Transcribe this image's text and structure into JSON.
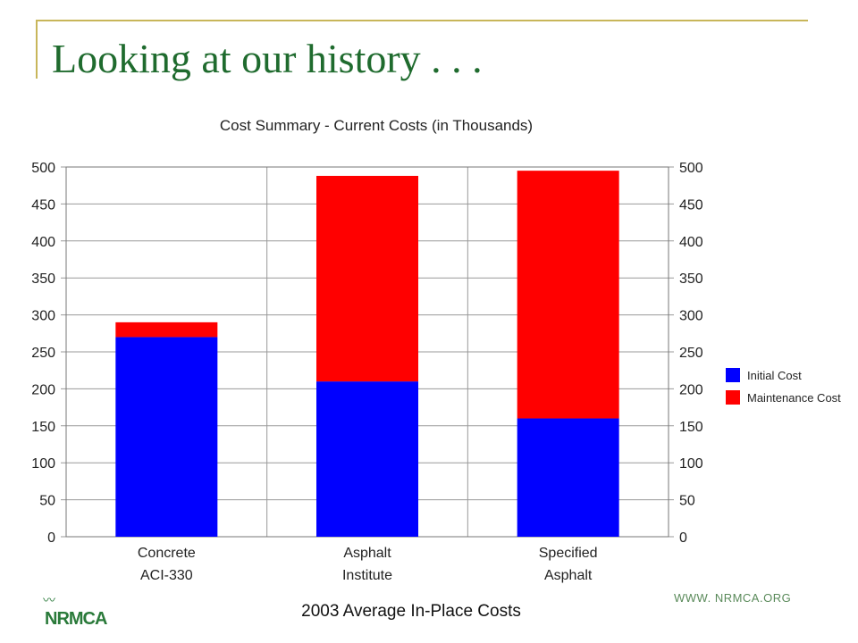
{
  "slide": {
    "title": "Looking at our history . . .",
    "caption": "2003 Average In-Place Costs",
    "url": "WWW. NRMCA.ORG",
    "logo_text": "NRMCA",
    "logo_icon": "wave-icon"
  },
  "chart_data": {
    "type": "bar",
    "stacked": true,
    "title": "Cost Summary - Current Costs (in Thousands)",
    "categories": [
      [
        "Concrete",
        "ACI-330"
      ],
      [
        "Asphalt",
        "Institute"
      ],
      [
        "Specified",
        "Asphalt"
      ]
    ],
    "series": [
      {
        "name": "Initial Cost",
        "color": "#0000ff",
        "values": [
          270,
          210,
          160
        ]
      },
      {
        "name": "Maintenance Cost",
        "color": "#ff0000",
        "values": [
          20,
          278,
          335
        ]
      }
    ],
    "ylim": [
      0,
      500
    ],
    "yticks": [
      0,
      50,
      100,
      150,
      200,
      250,
      300,
      350,
      400,
      450,
      500
    ],
    "y_axis_right": true,
    "grid": "horizontal and vertical",
    "legend": "right",
    "colors": {
      "grid": "#999999",
      "axis": "#777777",
      "title_text": "#222222"
    }
  }
}
